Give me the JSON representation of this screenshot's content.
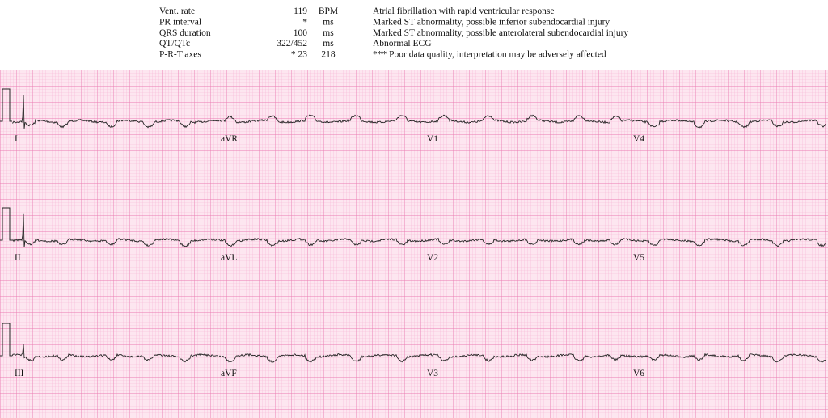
{
  "header": {
    "measurements": [
      [
        "Vent. rate",
        "119",
        "BPM"
      ],
      [
        "PR interval",
        "*",
        "ms"
      ],
      [
        "QRS duration",
        "100",
        "ms"
      ],
      [
        "QT/QTc",
        "322/452",
        "ms"
      ],
      [
        "P-R-T axes",
        "*   23",
        "218"
      ]
    ],
    "interpretation": [
      "Atrial fibrillation with rapid ventricular response",
      "Marked ST abnormality, possible inferior subendocardial injury",
      "Marked ST abnormality, possible anterolateral subendocardial injury",
      "Abnormal ECG",
      "*** Poor data quality, interpretation may be adversely affected"
    ]
  },
  "leads": [
    [
      "I",
      "aVR",
      "V1",
      "V4"
    ],
    [
      "II",
      "aVL",
      "V2",
      "V5"
    ],
    [
      "III",
      "aVF",
      "V3",
      "V6"
    ]
  ]
}
